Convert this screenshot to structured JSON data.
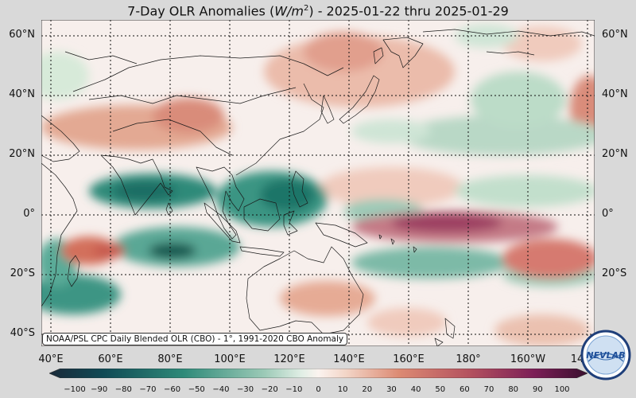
{
  "title": {
    "prefix": "7-Day OLR Anomalies (",
    "unit_var": "W/m",
    "unit_exp": "2",
    "suffix": ") - 2025-01-22 thru 2025-01-29"
  },
  "lat_labels": [
    "60°N",
    "40°N",
    "20°N",
    "0°",
    "20°S",
    "40°S"
  ],
  "lon_labels": [
    "40°E",
    "60°E",
    "80°E",
    "100°E",
    "120°E",
    "140°E",
    "160°E",
    "180°",
    "160°W",
    "14"
  ],
  "credit": "NOAA/PSL CPC Daily Blended OLR (CBO) - 1°, 1991-2020 CBO Anomaly",
  "logo_text": "NEVLAB",
  "colorbar": {
    "ticks": [
      "−100",
      "−90",
      "−80",
      "−70",
      "−60",
      "−50",
      "−40",
      "−30",
      "−20",
      "−10",
      "0",
      "10",
      "20",
      "30",
      "40",
      "50",
      "60",
      "70",
      "80",
      "90",
      "100"
    ],
    "negative_color": "#0f5a55",
    "zero_color": "#fbf3ef",
    "positive_color": "#62104c"
  },
  "colors": {
    "background": "#d9d9d9",
    "ocean_neutral": "#f7efec",
    "coastline": "#1a1a1a",
    "grid": "#111111"
  }
}
